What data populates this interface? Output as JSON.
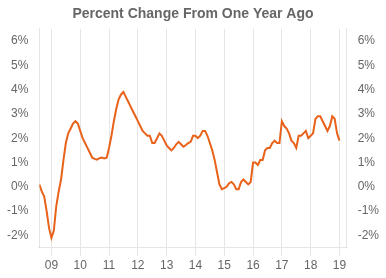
{
  "chart_data": {
    "type": "line",
    "title": "Percent Change From One Year Ago",
    "color": "#E8621A",
    "x": [
      2008.583,
      2008.667,
      2008.75,
      2008.833,
      2008.917,
      2009.0,
      2009.083,
      2009.167,
      2009.25,
      2009.333,
      2009.417,
      2009.5,
      2009.583,
      2009.667,
      2009.75,
      2009.833,
      2009.917,
      2010.0,
      2010.083,
      2010.167,
      2010.25,
      2010.333,
      2010.417,
      2010.5,
      2010.583,
      2010.667,
      2010.75,
      2010.833,
      2010.917,
      2011.0,
      2011.083,
      2011.167,
      2011.25,
      2011.333,
      2011.417,
      2011.5,
      2011.583,
      2011.667,
      2011.75,
      2011.833,
      2011.917,
      2012.0,
      2012.083,
      2012.167,
      2012.25,
      2012.333,
      2012.417,
      2012.5,
      2012.583,
      2012.667,
      2012.75,
      2012.833,
      2012.917,
      2013.0,
      2013.083,
      2013.167,
      2013.25,
      2013.333,
      2013.417,
      2013.5,
      2013.583,
      2013.667,
      2013.75,
      2013.833,
      2013.917,
      2014.0,
      2014.083,
      2014.167,
      2014.25,
      2014.333,
      2014.417,
      2014.5,
      2014.583,
      2014.667,
      2014.75,
      2014.833,
      2014.917,
      2015.0,
      2015.083,
      2015.167,
      2015.25,
      2015.333,
      2015.417,
      2015.5,
      2015.583,
      2015.667,
      2015.75,
      2015.833,
      2015.917,
      2016.0,
      2016.083,
      2016.167,
      2016.25,
      2016.333,
      2016.417,
      2016.5,
      2016.583,
      2016.667,
      2016.75,
      2016.833,
      2016.917,
      2017.0,
      2017.083,
      2017.167,
      2017.25,
      2017.333,
      2017.417,
      2017.5,
      2017.583,
      2017.667,
      2017.75,
      2017.833,
      2017.917,
      2018.0,
      2018.083,
      2018.167,
      2018.25,
      2018.333,
      2018.417,
      2018.5,
      2018.583,
      2018.667,
      2018.75,
      2018.833,
      2018.917,
      2019.0
    ],
    "values": [
      0.09,
      -0.2,
      -0.4,
      -1.0,
      -1.7,
      -2.1,
      -1.8,
      -0.8,
      -0.2,
      0.3,
      1.1,
      1.8,
      2.2,
      2.4,
      2.6,
      2.7,
      2.6,
      2.3,
      2.0,
      1.8,
      1.6,
      1.4,
      1.2,
      1.15,
      1.12,
      1.18,
      1.2,
      1.17,
      1.2,
      1.6,
      2.1,
      2.7,
      3.2,
      3.6,
      3.8,
      3.9,
      3.7,
      3.5,
      3.3,
      3.1,
      2.9,
      2.7,
      2.5,
      2.3,
      2.2,
      2.1,
      2.1,
      1.8,
      1.8,
      2.0,
      2.2,
      2.1,
      1.9,
      1.7,
      1.6,
      1.5,
      1.6,
      1.75,
      1.85,
      1.75,
      1.65,
      1.72,
      1.8,
      1.85,
      2.1,
      2.1,
      2.0,
      2.1,
      2.3,
      2.3,
      2.1,
      1.8,
      1.5,
      1.1,
      0.6,
      0.1,
      -0.1,
      -0.05,
      0.0,
      0.15,
      0.2,
      0.1,
      -0.1,
      -0.1,
      0.2,
      0.3,
      0.2,
      0.1,
      0.2,
      1.0,
      1.0,
      0.9,
      1.1,
      1.1,
      1.5,
      1.6,
      1.6,
      1.8,
      1.9,
      1.8,
      1.8,
      2.7,
      2.5,
      2.4,
      2.2,
      1.9,
      1.8,
      1.6,
      2.1,
      2.1,
      2.2,
      2.3,
      2.0,
      2.1,
      2.2,
      2.8,
      2.9,
      2.9,
      2.7,
      2.5,
      2.3,
      2.5,
      2.9,
      2.8,
      2.2,
      1.9
    ],
    "xlim": [
      2008.58,
      2019.25
    ],
    "xticks": [
      {
        "value": 2009,
        "label": "09"
      },
      {
        "value": 2010,
        "label": "10"
      },
      {
        "value": 2011,
        "label": "11"
      },
      {
        "value": 2012,
        "label": "12"
      },
      {
        "value": 2013,
        "label": "13"
      },
      {
        "value": 2014,
        "label": "14"
      },
      {
        "value": 2015,
        "label": "15"
      },
      {
        "value": 2016,
        "label": "16"
      },
      {
        "value": 2017,
        "label": "17"
      },
      {
        "value": 2018,
        "label": "18"
      },
      {
        "value": 2019,
        "label": "19"
      }
    ],
    "ylim": [
      -2.5,
      6.5
    ],
    "yticks": [
      {
        "value": -2,
        "label": "-2%"
      },
      {
        "value": -1,
        "label": "-1%"
      },
      {
        "value": 0,
        "label": "0%"
      },
      {
        "value": 1,
        "label": "1%"
      },
      {
        "value": 2,
        "label": "2%"
      },
      {
        "value": 3,
        "label": "3%"
      },
      {
        "value": 4,
        "label": "4%"
      },
      {
        "value": 5,
        "label": "5%"
      },
      {
        "value": 6,
        "label": "6%"
      }
    ],
    "y2lim": [
      -2.5,
      6.5
    ],
    "y2ticks": [
      {
        "value": -2,
        "label": "-2%"
      },
      {
        "value": -1,
        "label": "-1%"
      },
      {
        "value": 0,
        "label": "0%"
      },
      {
        "value": 1,
        "label": "1%"
      },
      {
        "value": 2,
        "label": "2%"
      },
      {
        "value": 3,
        "label": "3%"
      },
      {
        "value": 4,
        "label": "4%"
      },
      {
        "value": 5,
        "label": "5%"
      },
      {
        "value": 6,
        "label": "6%"
      }
    ],
    "grid": "x"
  }
}
